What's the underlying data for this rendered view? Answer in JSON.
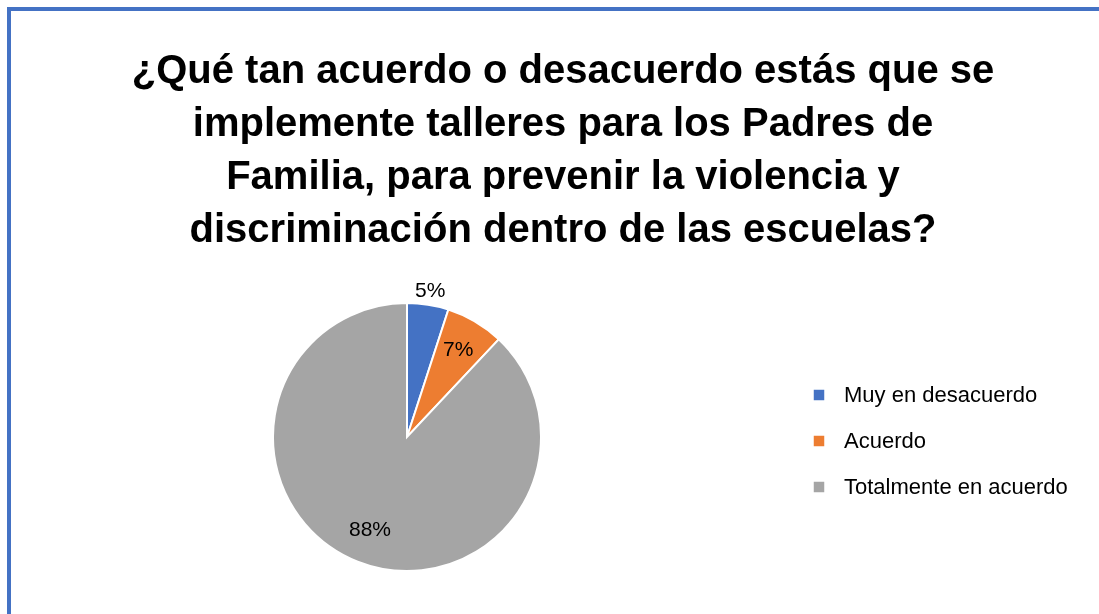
{
  "chart_data": {
    "type": "pie",
    "title": "¿Qué tan acuerdo o desacuerdo estás que se\nimplemente talleres para los Padres de\nFamilia, para prevenir la violencia y\ndiscriminación dentro de las escuelas?",
    "categories": [
      "Muy en desacuerdo",
      "Acuerdo",
      "Totalmente en acuerdo"
    ],
    "values": [
      5,
      7,
      88
    ],
    "colors": [
      "#4472c4",
      "#ed7d31",
      "#a5a5a5"
    ],
    "value_labels": [
      "5%",
      "7%",
      "88%"
    ],
    "legend": "right"
  }
}
